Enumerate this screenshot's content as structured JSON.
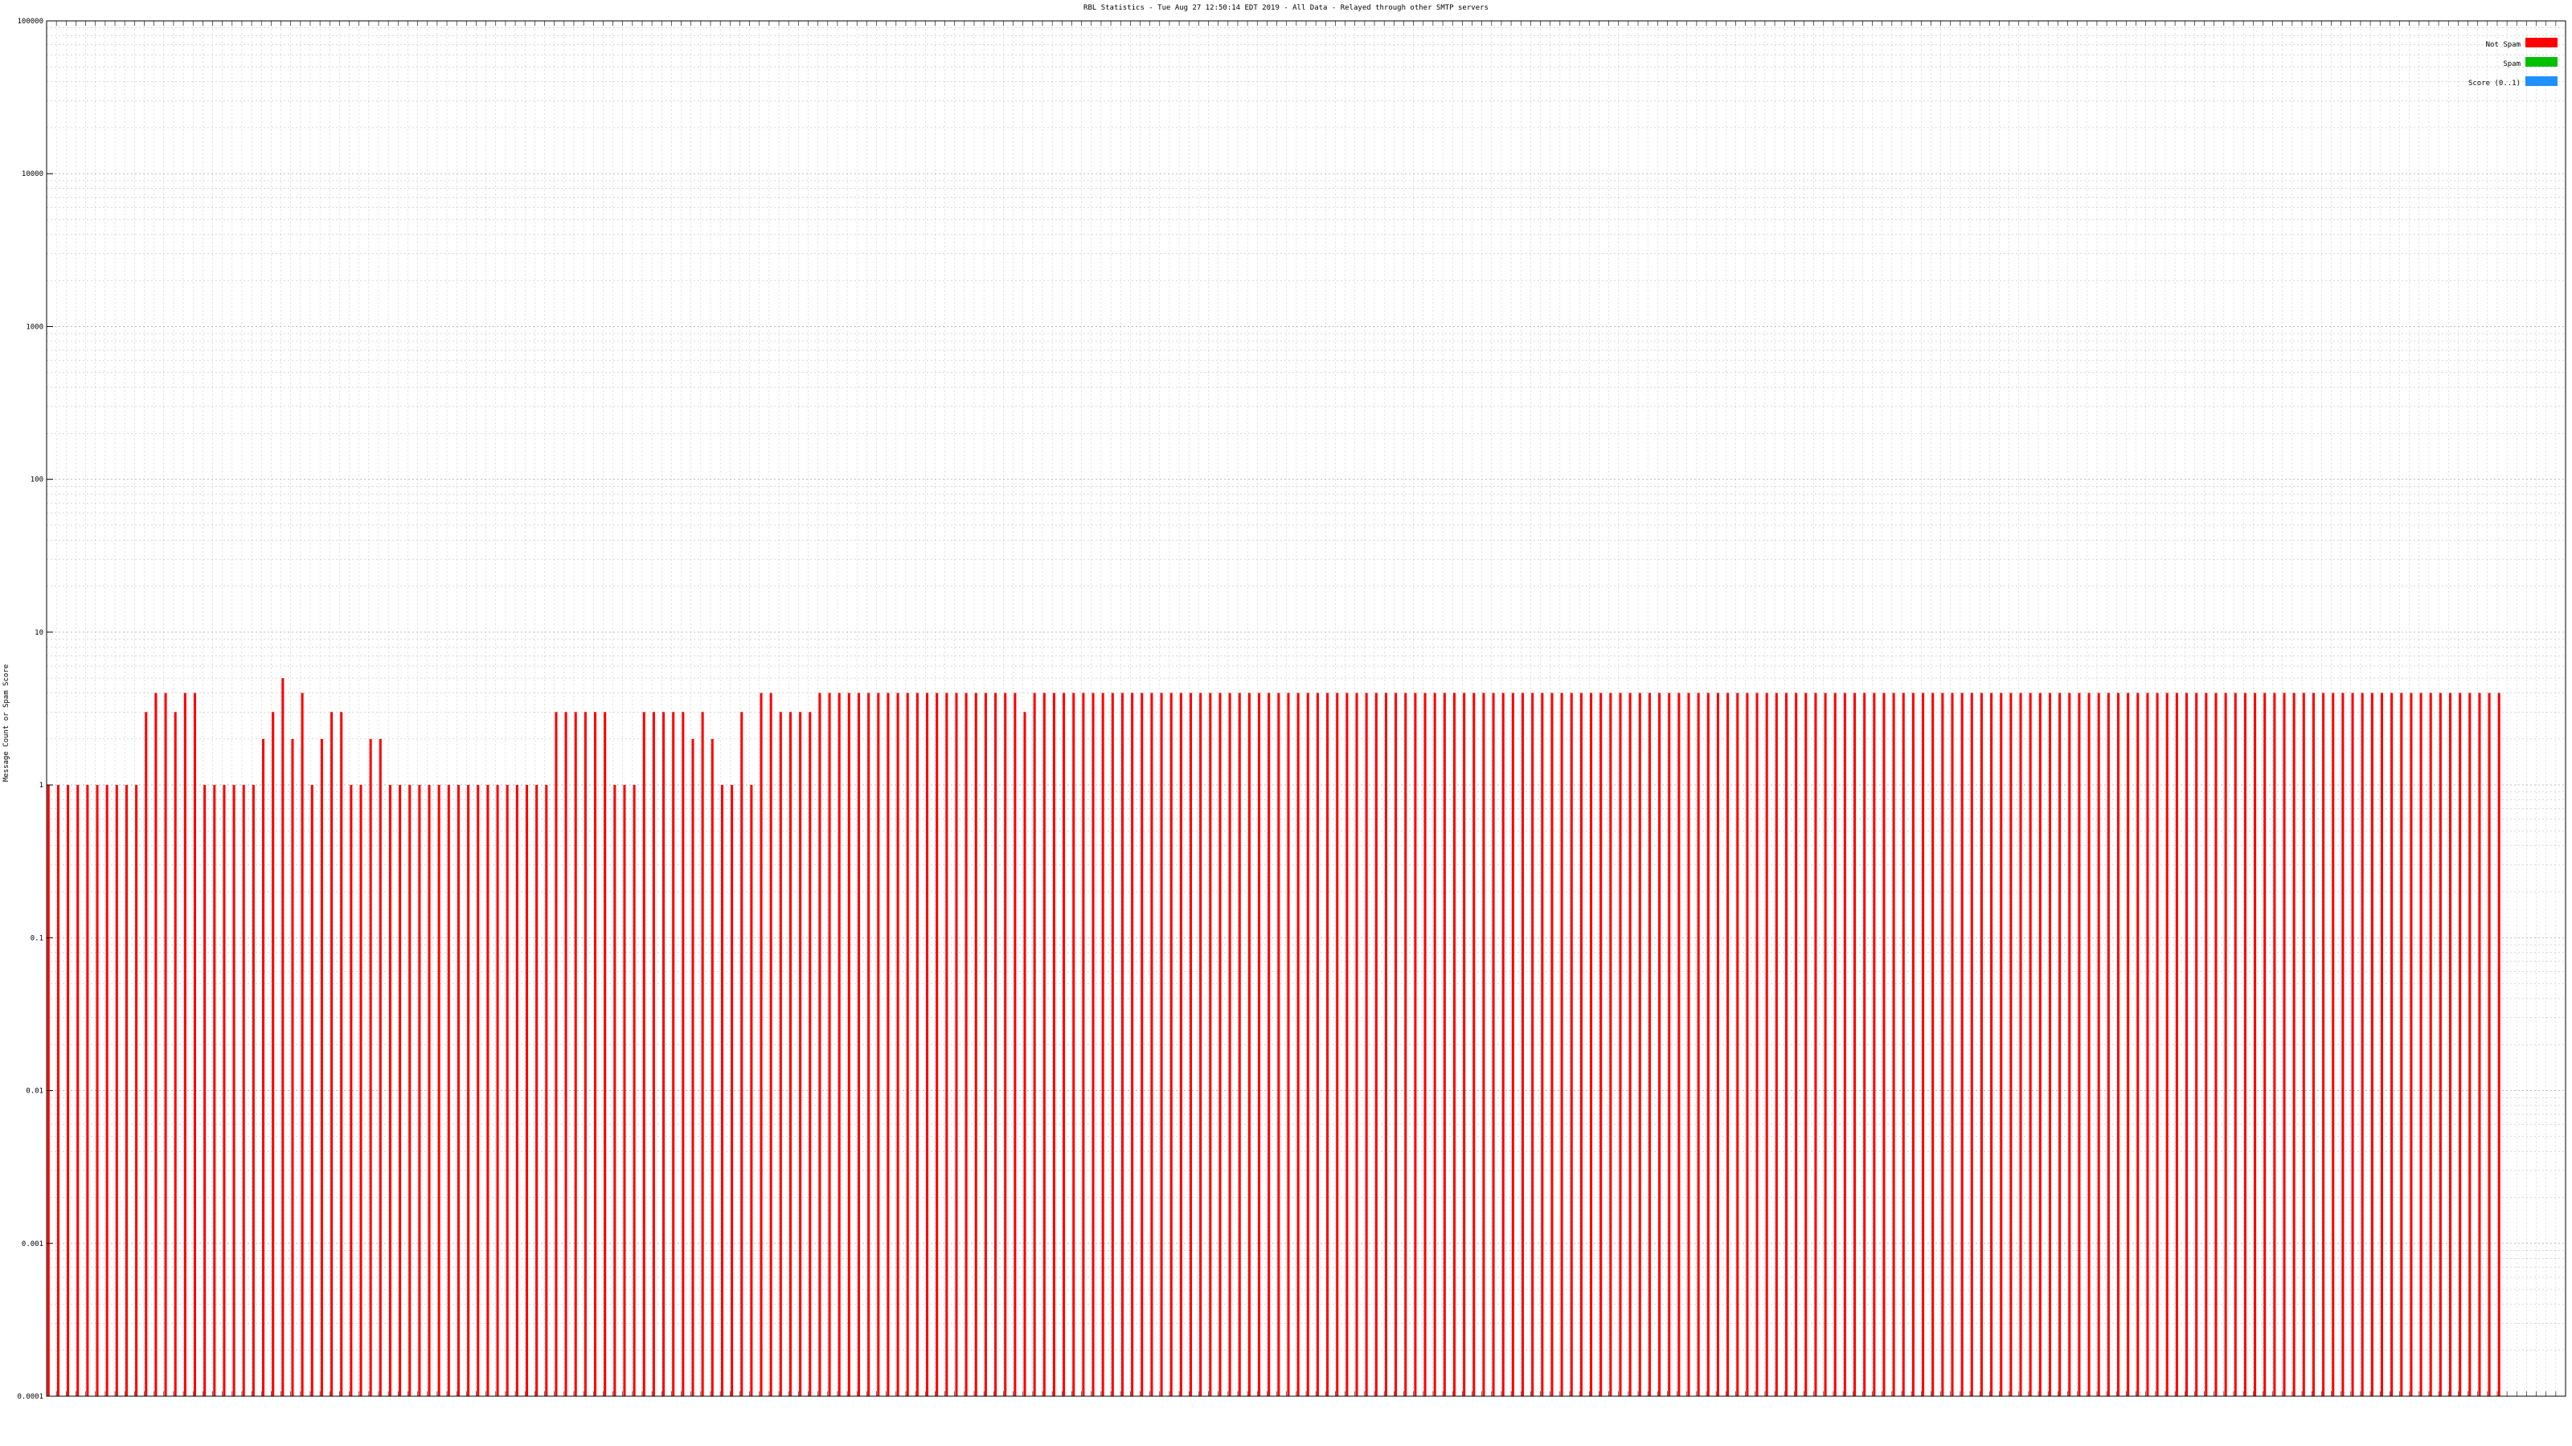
{
  "chart_data": {
    "type": "bar",
    "title": "RBL Statistics - Tue Aug 27 12:50:14 EDT 2019 - All Data - Relayed through other SMTP servers",
    "ylabel": "Message Count or Spam Score",
    "yscale": "log",
    "ylim": [
      0.0001,
      100000
    ],
    "yticks": [
      "0.0001",
      "0.001",
      "0.01",
      "0.1",
      "1",
      "10",
      "100",
      "1000",
      "10000",
      "100000"
    ],
    "grid": true,
    "legend_position": "top-right",
    "category_count": 258,
    "colors": {
      "not_spam": "#ff0000",
      "spam": "#00c000",
      "score": "#1e90ff",
      "background": "#ffffff",
      "grid": "#b0b0b0"
    },
    "series": [
      {
        "name": "Not Spam",
        "values": [
          1,
          1,
          1,
          1,
          1,
          1,
          1,
          1,
          1,
          1,
          3,
          4,
          4,
          3,
          4,
          4,
          1,
          1,
          1,
          1,
          1,
          1,
          2,
          3,
          5,
          2,
          4,
          1,
          2,
          3,
          3,
          1,
          1,
          2,
          2,
          1,
          1,
          1,
          1,
          1,
          1,
          1,
          1,
          1,
          1,
          1,
          1,
          1,
          1,
          1,
          1,
          1,
          3,
          3,
          3,
          3,
          3,
          3,
          1,
          1,
          1,
          3,
          3,
          3,
          3,
          3,
          2,
          3,
          2,
          1,
          1,
          3,
          1,
          4,
          4,
          3,
          3,
          3,
          3,
          4,
          4,
          4,
          4,
          4,
          4,
          4,
          4,
          4,
          4,
          4,
          4,
          4,
          4,
          4,
          4,
          4,
          4,
          4,
          4,
          4,
          3,
          4,
          4,
          4,
          4,
          4,
          4,
          4,
          4,
          4,
          4,
          4,
          4,
          4,
          4,
          4,
          4,
          4,
          4,
          4,
          4,
          4,
          4,
          4,
          4,
          4,
          4,
          4,
          4,
          4,
          4,
          4,
          4,
          4,
          4,
          4,
          4,
          4,
          4,
          4,
          4,
          4,
          4,
          4,
          4,
          4,
          4,
          4,
          4,
          4,
          4,
          4,
          4,
          4,
          4,
          4,
          4,
          4,
          4,
          4,
          4,
          4,
          4,
          4,
          4,
          4,
          4,
          4,
          4,
          4,
          4,
          4,
          4,
          4,
          4,
          4,
          4,
          4,
          4,
          4,
          4,
          4,
          4,
          4,
          4,
          4,
          4,
          4,
          4,
          4,
          4,
          4,
          4,
          4,
          4,
          4,
          4,
          4,
          4,
          4,
          4,
          4,
          4,
          4,
          4,
          4,
          4,
          4,
          4,
          4,
          4,
          4,
          4,
          4,
          4,
          4,
          4,
          4,
          4,
          4,
          4,
          4,
          4,
          4,
          4,
          4,
          4,
          4,
          4,
          4,
          4,
          4,
          4,
          4,
          4,
          4,
          4,
          4,
          4,
          4,
          4,
          4,
          4,
          4,
          4,
          4,
          4,
          4,
          4,
          4,
          4,
          4
        ]
      },
      {
        "name": "Spam",
        "values": []
      },
      {
        "name": "Score (0..1)",
        "values": []
      }
    ]
  },
  "legend": {
    "not_spam_label": "Not Spam",
    "spam_label": "Spam",
    "score_label": "Score (0..1)"
  }
}
